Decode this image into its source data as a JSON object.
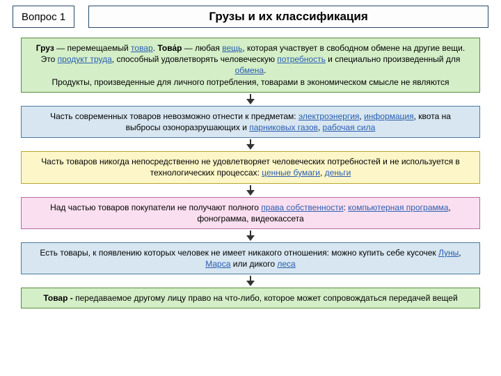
{
  "header": {
    "question_label": "Вопрос 1",
    "title": "Грузы и их классификация"
  },
  "colors": {
    "header_border": "#2a4a6a",
    "link": "#2a5db0",
    "arrow": "#333333"
  },
  "nodes": [
    {
      "bg": "#d4eec8",
      "border": "#5a8a3a",
      "segments": [
        {
          "t": "Груз",
          "b": true
        },
        {
          "t": " — перемещаемый "
        },
        {
          "t": "товар",
          "u": true,
          "lk": true
        },
        {
          "t": ". "
        },
        {
          "t": "Това́р",
          "b": true
        },
        {
          "t": " — любая "
        },
        {
          "t": "вещь",
          "u": true,
          "lk": true
        },
        {
          "t": ", которая участвует в свободном обмене на другие вещи. Это "
        },
        {
          "t": "продукт труда",
          "u": true,
          "lk": true
        },
        {
          "t": ", способный удовлетворять человеческую "
        },
        {
          "t": "потребность",
          "u": true,
          "lk": true
        },
        {
          "t": " и специально произведенный для "
        },
        {
          "t": "обмена",
          "u": true,
          "lk": true
        },
        {
          "t": "."
        },
        {
          "br": true
        },
        {
          "t": "Продукты, произведенные для личного потребления, товарами в экономическом смысле не являются"
        }
      ]
    },
    {
      "bg": "#d7e6f0",
      "border": "#4a7aa0",
      "segments": [
        {
          "t": "Часть современных товаров невозможно отнести к предметам: "
        },
        {
          "t": "электроэнергия",
          "u": true,
          "lk": true
        },
        {
          "t": ", "
        },
        {
          "t": "информация",
          "u": true,
          "lk": true
        },
        {
          "t": ", квота на выбросы озоноразрушающих и "
        },
        {
          "t": "парниковых газов",
          "u": true,
          "lk": true
        },
        {
          "t": ", "
        },
        {
          "t": "рабочая сила",
          "u": true,
          "lk": true
        }
      ]
    },
    {
      "bg": "#fdf6c8",
      "border": "#b8a830",
      "segments": [
        {
          "t": "Часть товаров никогда непосредственно не удовлетворяет человеческих потребностей и не используется в технологических процессах: "
        },
        {
          "t": "ценные бумаги",
          "u": true,
          "lk": true
        },
        {
          "t": ", "
        },
        {
          "t": "деньги",
          "u": true,
          "lk": true
        }
      ]
    },
    {
      "bg": "#fadff0",
      "border": "#b86aa0",
      "segments": [
        {
          "t": "Над частью товаров покупатели не получают полного "
        },
        {
          "t": "права собственности",
          "u": true,
          "lk": true
        },
        {
          "t": ": "
        },
        {
          "t": "компьютерная программа",
          "u": true,
          "lk": true
        },
        {
          "t": ", фонограмма, видеокассета"
        }
      ]
    },
    {
      "bg": "#d7e6f0",
      "border": "#4a7aa0",
      "segments": [
        {
          "t": "Есть товары, к появлению которых человек не имеет никакого отношения: можно купить себе кусочек "
        },
        {
          "t": "Луны",
          "u": true,
          "lk": true
        },
        {
          "t": ", "
        },
        {
          "t": "Марса",
          "u": true,
          "lk": true
        },
        {
          "t": " или дикого "
        },
        {
          "t": "леса",
          "u": true,
          "lk": true
        }
      ]
    },
    {
      "bg": "#d4eec8",
      "border": "#5a8a3a",
      "segments": [
        {
          "t": "Товар - ",
          "b": true
        },
        {
          "t": "передаваемое другому лицу право на что-либо, которое может сопровождаться передачей вещей"
        }
      ]
    }
  ]
}
